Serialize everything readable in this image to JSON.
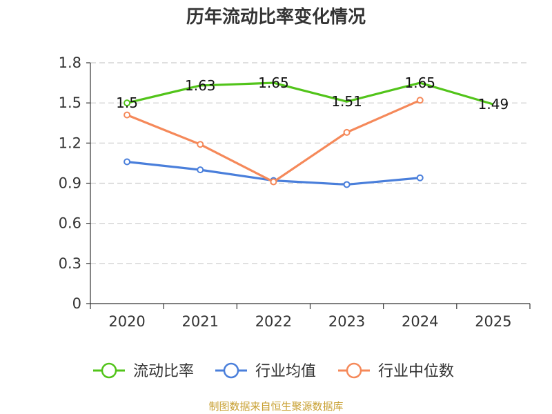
{
  "chart_data": {
    "type": "line",
    "title": "历年流动比率变化情况",
    "categories": [
      "2020",
      "2021",
      "2022",
      "2023",
      "2024",
      "2025"
    ],
    "ylim": [
      0,
      1.8
    ],
    "yticks": [
      0,
      0.3,
      0.6,
      0.9,
      1.2,
      1.5,
      1.8
    ],
    "ytick_labels": [
      "0",
      "0.3",
      "0.6",
      "0.9",
      "1.2",
      "1.5",
      "1.8"
    ],
    "grid": true,
    "legend_position": "bottom",
    "series": [
      {
        "name": "流动比率",
        "color": "#52c41a",
        "values": [
          1.5,
          1.63,
          1.65,
          1.51,
          1.65,
          1.49
        ],
        "labels": [
          "1.5",
          "1.63",
          "1.65",
          "1.51",
          "1.65",
          "1.49"
        ],
        "markers": [
          true,
          false,
          false,
          false,
          false,
          false
        ]
      },
      {
        "name": "行业均值",
        "color": "#4a7fdb",
        "values": [
          1.06,
          1.0,
          0.92,
          0.89,
          0.94,
          null
        ],
        "markers": [
          true,
          true,
          true,
          true,
          true,
          false
        ]
      },
      {
        "name": "行业中位数",
        "color": "#f5895a",
        "values": [
          1.41,
          1.19,
          0.91,
          1.28,
          1.52,
          null
        ],
        "markers": [
          true,
          true,
          true,
          true,
          true,
          false
        ]
      }
    ]
  },
  "source_note": "制图数据来自恒生聚源数据库"
}
